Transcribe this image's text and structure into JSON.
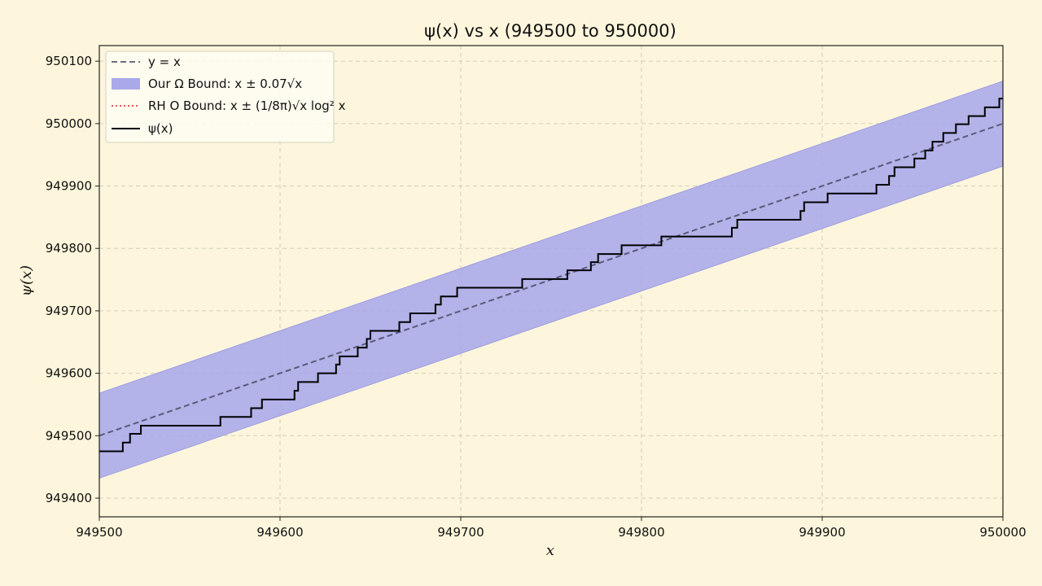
{
  "chart_data": {
    "type": "line",
    "title": "ψ(x) vs x (949500 to 950000)",
    "xlabel": "x",
    "ylabel": "ψ(x)",
    "xlim": [
      949500,
      950000
    ],
    "ylim": [
      949370,
      950125
    ],
    "x_ticks": [
      949500,
      949600,
      949700,
      949800,
      949900,
      950000
    ],
    "y_ticks": [
      949400,
      949500,
      949600,
      949700,
      949800,
      949900,
      950000,
      950100
    ],
    "grid": true,
    "legend_position": "top-left",
    "legend": [
      {
        "label": "y = x",
        "style": "dashed",
        "color": "#6e6e82"
      },
      {
        "label": "Our Ω Bound: x ± 0.07√x",
        "style": "band",
        "color": "#a9a9ea"
      },
      {
        "label": "RH O Bound: x ± (1/8π)√x log² x",
        "style": "dotted",
        "color": "#e05555"
      },
      {
        "label": "ψ(x)",
        "style": "solid",
        "color": "#000000"
      }
    ],
    "series": [
      {
        "name": "y = x",
        "style": "dashed",
        "points": [
          [
            949500,
            949500
          ],
          [
            950000,
            950000
          ]
        ]
      },
      {
        "name": "Our Ω Bound: x ± 0.07√x",
        "style": "band",
        "lower": [
          [
            949500,
            949431.8
          ],
          [
            950000,
            949931.8
          ]
        ],
        "upper": [
          [
            949500,
            949568.2
          ],
          [
            950000,
            950068.2
          ]
        ]
      },
      {
        "name": "ψ(x)",
        "style": "step",
        "points": [
          [
            949500,
            949475
          ],
          [
            949513,
            949489
          ],
          [
            949517,
            949503
          ],
          [
            949523,
            949516
          ],
          [
            949567,
            949530
          ],
          [
            949584,
            949544
          ],
          [
            949590,
            949558
          ],
          [
            949608,
            949572
          ],
          [
            949610,
            949586
          ],
          [
            949621,
            949600
          ],
          [
            949631,
            949614
          ],
          [
            949633,
            949627
          ],
          [
            949643,
            949641
          ],
          [
            949648,
            949655
          ],
          [
            949650,
            949668
          ],
          [
            949666,
            949682
          ],
          [
            949672,
            949696
          ],
          [
            949686,
            949710
          ],
          [
            949689,
            949723
          ],
          [
            949698,
            949737
          ],
          [
            949734,
            949751
          ],
          [
            949759,
            949765
          ],
          [
            949772,
            949778
          ],
          [
            949776,
            949791
          ],
          [
            949789,
            949805
          ],
          [
            949811,
            949819
          ],
          [
            949850,
            949833
          ],
          [
            949853,
            949846
          ],
          [
            949888,
            949860
          ],
          [
            949890,
            949874
          ],
          [
            949903,
            949888
          ],
          [
            949930,
            949902
          ],
          [
            949937,
            949916
          ],
          [
            949940,
            949930
          ],
          [
            949951,
            949944
          ],
          [
            949957,
            949957
          ],
          [
            949961,
            949971
          ],
          [
            949967,
            949985
          ],
          [
            949974,
            949999
          ],
          [
            949981,
            950012
          ],
          [
            949990,
            950026
          ],
          [
            949998,
            950040
          ],
          [
            950000,
            950040
          ]
        ]
      }
    ]
  }
}
